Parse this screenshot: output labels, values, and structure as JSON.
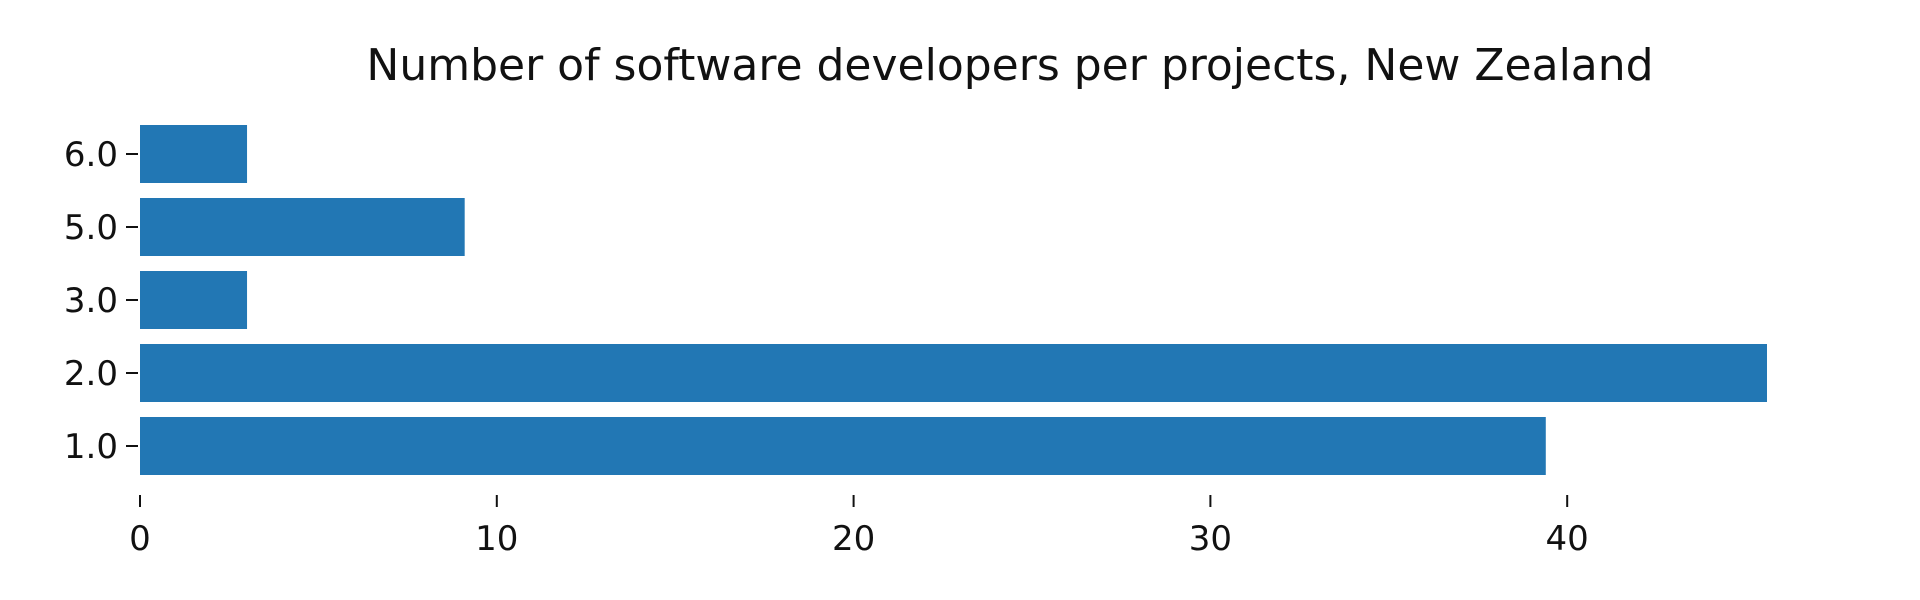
{
  "chart_data": {
    "type": "bar",
    "orientation": "horizontal",
    "title": "Number of software developers per projects, New Zealand",
    "categories": [
      "1.0",
      "2.0",
      "3.0",
      "5.0",
      "6.0"
    ],
    "values": [
      39.4,
      45.6,
      3.0,
      9.1,
      3.0
    ],
    "xlabel": "",
    "ylabel": "",
    "xlim": [
      0,
      45.6
    ],
    "x_ticks": [
      0,
      10,
      20,
      30,
      40
    ],
    "x_tick_labels": [
      "0",
      "10",
      "20",
      "30",
      "40"
    ],
    "grid": false,
    "legend": "none",
    "colors": {
      "bar": "#2277b4",
      "text": "#111111",
      "background": "#ffffff"
    }
  }
}
